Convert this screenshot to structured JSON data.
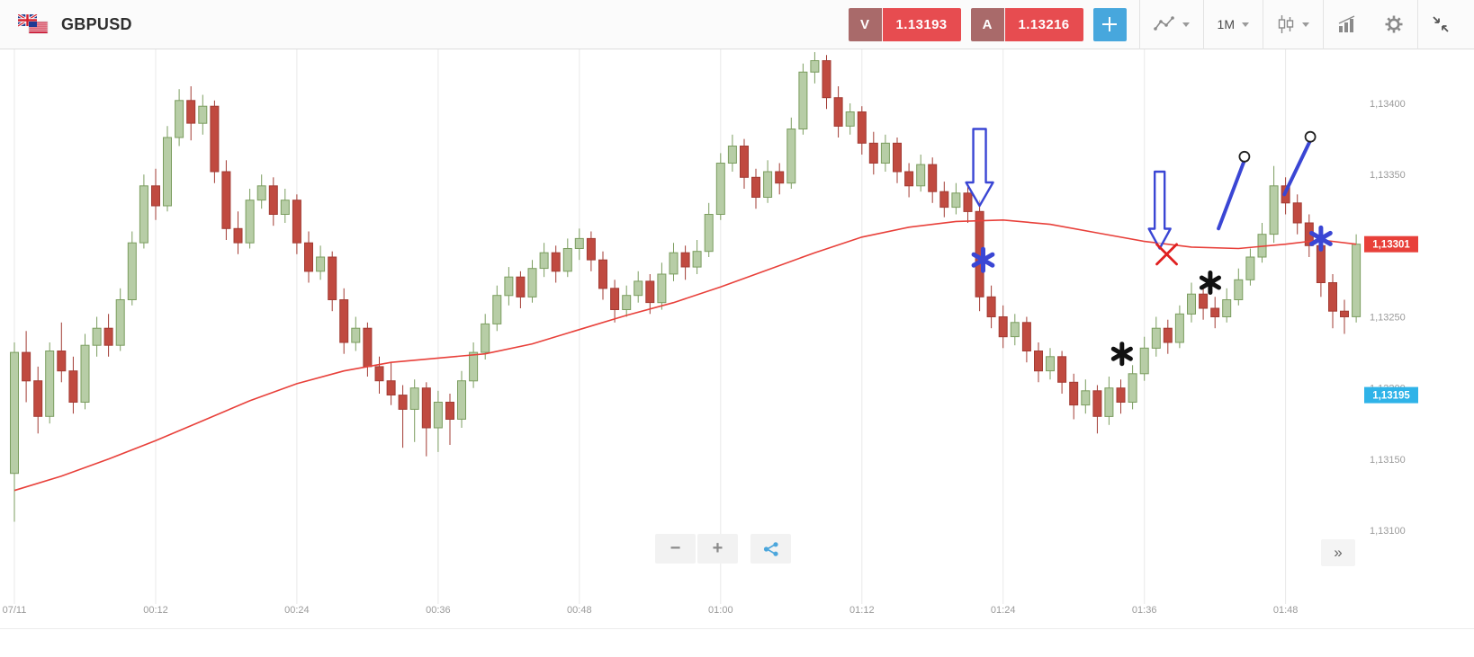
{
  "header": {
    "symbol": "GBPUSD",
    "sell": {
      "label": "V",
      "price": "1.13193"
    },
    "buy": {
      "label": "A",
      "price": "1.13216"
    },
    "timeframe": "1M",
    "colors": {
      "tag_bg": "#a96a6a",
      "price_bg": "#e74c50",
      "crosshair_bg": "#47a7dd"
    }
  },
  "bottom_controls": {
    "zoom_out_label": "−",
    "zoom_in_label": "+",
    "expand_label": "»"
  },
  "chart_data": {
    "type": "candlestick",
    "title": "GBPUSD 1-minute candlestick chart",
    "interval": "1M",
    "date": "07/11",
    "x_start_time": "00:00",
    "minutes_per_candle": 1,
    "grid": "vertical-only",
    "x_ticks": [
      {
        "minute": 0,
        "label": "07/11"
      },
      {
        "minute": 12,
        "label": "00:12"
      },
      {
        "minute": 24,
        "label": "00:24"
      },
      {
        "minute": 36,
        "label": "00:36"
      },
      {
        "minute": 48,
        "label": "00:48"
      },
      {
        "minute": 60,
        "label": "01:00"
      },
      {
        "minute": 72,
        "label": "01:12"
      },
      {
        "minute": 84,
        "label": "01:24"
      },
      {
        "minute": 96,
        "label": "01:36"
      },
      {
        "minute": 108,
        "label": "01:48"
      }
    ],
    "y_ticks": [
      {
        "price": 1.134,
        "label": "1,13400"
      },
      {
        "price": 1.1335,
        "label": "1,13350"
      },
      {
        "price": 1.133,
        "label": "1,13300"
      },
      {
        "price": 1.1325,
        "label": "1,13250"
      },
      {
        "price": 1.132,
        "label": "1,13200"
      },
      {
        "price": 1.1315,
        "label": "1,13150"
      },
      {
        "price": 1.131,
        "label": "1,13100"
      }
    ],
    "price_at_plot_top": 1.134379,
    "price_at_plot_bottom": 1.130482,
    "candles_ohlc": [
      [
        1.1314,
        1.13232,
        1.13106,
        1.13225
      ],
      [
        1.13225,
        1.1324,
        1.1319,
        1.13205
      ],
      [
        1.13205,
        1.13215,
        1.13168,
        1.1318
      ],
      [
        1.1318,
        1.13232,
        1.13175,
        1.13226
      ],
      [
        1.13226,
        1.13246,
        1.13204,
        1.13212
      ],
      [
        1.13212,
        1.13222,
        1.13182,
        1.1319
      ],
      [
        1.1319,
        1.13238,
        1.13185,
        1.1323
      ],
      [
        1.1323,
        1.1325,
        1.13222,
        1.13242
      ],
      [
        1.13242,
        1.13252,
        1.13222,
        1.1323
      ],
      [
        1.1323,
        1.1327,
        1.13226,
        1.13262
      ],
      [
        1.13262,
        1.1331,
        1.13258,
        1.13302
      ],
      [
        1.13302,
        1.1335,
        1.13298,
        1.13342
      ],
      [
        1.13342,
        1.13354,
        1.13318,
        1.13328
      ],
      [
        1.13328,
        1.13384,
        1.13324,
        1.13376
      ],
      [
        1.13376,
        1.1341,
        1.1337,
        1.13402
      ],
      [
        1.13402,
        1.13412,
        1.13374,
        1.13386
      ],
      [
        1.13386,
        1.13406,
        1.13378,
        1.13398
      ],
      [
        1.13398,
        1.13402,
        1.13344,
        1.13352
      ],
      [
        1.13352,
        1.1336,
        1.13304,
        1.13312
      ],
      [
        1.13312,
        1.13324,
        1.13294,
        1.13302
      ],
      [
        1.13302,
        1.1334,
        1.13298,
        1.13332
      ],
      [
        1.13332,
        1.1335,
        1.13326,
        1.13342
      ],
      [
        1.13342,
        1.13348,
        1.13314,
        1.13322
      ],
      [
        1.13322,
        1.1334,
        1.13316,
        1.13332
      ],
      [
        1.13332,
        1.13336,
        1.13294,
        1.13302
      ],
      [
        1.13302,
        1.1331,
        1.13274,
        1.13282
      ],
      [
        1.13282,
        1.133,
        1.13276,
        1.13292
      ],
      [
        1.13292,
        1.13296,
        1.13254,
        1.13262
      ],
      [
        1.13262,
        1.1327,
        1.13224,
        1.13232
      ],
      [
        1.13232,
        1.1325,
        1.13226,
        1.13242
      ],
      [
        1.13242,
        1.13246,
        1.13208,
        1.13215
      ],
      [
        1.13215,
        1.13222,
        1.13196,
        1.13205
      ],
      [
        1.13205,
        1.13218,
        1.13188,
        1.13195
      ],
      [
        1.13195,
        1.13202,
        1.13158,
        1.13185
      ],
      [
        1.13185,
        1.13206,
        1.13162,
        1.132
      ],
      [
        1.132,
        1.13204,
        1.13152,
        1.13172
      ],
      [
        1.13172,
        1.13198,
        1.13155,
        1.1319
      ],
      [
        1.1319,
        1.13196,
        1.1316,
        1.13178
      ],
      [
        1.13178,
        1.13212,
        1.13172,
        1.13205
      ],
      [
        1.13205,
        1.13232,
        1.132,
        1.13225
      ],
      [
        1.13225,
        1.13252,
        1.1322,
        1.13245
      ],
      [
        1.13245,
        1.13272,
        1.1324,
        1.13265
      ],
      [
        1.13265,
        1.13285,
        1.13258,
        1.13278
      ],
      [
        1.13278,
        1.13282,
        1.13256,
        1.13264
      ],
      [
        1.13264,
        1.1329,
        1.1326,
        1.13284
      ],
      [
        1.13284,
        1.13302,
        1.13278,
        1.13295
      ],
      [
        1.13295,
        1.133,
        1.13274,
        1.13282
      ],
      [
        1.13282,
        1.13305,
        1.13278,
        1.13298
      ],
      [
        1.13298,
        1.13312,
        1.1329,
        1.13305
      ],
      [
        1.13305,
        1.1331,
        1.13282,
        1.1329
      ],
      [
        1.1329,
        1.13296,
        1.13262,
        1.1327
      ],
      [
        1.1327,
        1.13276,
        1.13246,
        1.13255
      ],
      [
        1.13255,
        1.13272,
        1.1325,
        1.13265
      ],
      [
        1.13265,
        1.13282,
        1.1326,
        1.13275
      ],
      [
        1.13275,
        1.1328,
        1.13252,
        1.1326
      ],
      [
        1.1326,
        1.13288,
        1.13255,
        1.1328
      ],
      [
        1.1328,
        1.13302,
        1.13275,
        1.13295
      ],
      [
        1.13295,
        1.133,
        1.13276,
        1.13285
      ],
      [
        1.13285,
        1.13304,
        1.1328,
        1.13296
      ],
      [
        1.13296,
        1.1333,
        1.13292,
        1.13322
      ],
      [
        1.13322,
        1.13365,
        1.13318,
        1.13358
      ],
      [
        1.13358,
        1.13378,
        1.13352,
        1.1337
      ],
      [
        1.1337,
        1.13375,
        1.1334,
        1.13348
      ],
      [
        1.13348,
        1.13354,
        1.13326,
        1.13334
      ],
      [
        1.13334,
        1.1336,
        1.1333,
        1.13352
      ],
      [
        1.13352,
        1.13358,
        1.13336,
        1.13344
      ],
      [
        1.13344,
        1.1339,
        1.1334,
        1.13382
      ],
      [
        1.13382,
        1.13428,
        1.13378,
        1.13422
      ],
      [
        1.13422,
        1.13436,
        1.13414,
        1.1343
      ],
      [
        1.1343,
        1.13434,
        1.13396,
        1.13404
      ],
      [
        1.13404,
        1.13412,
        1.13376,
        1.13384
      ],
      [
        1.13384,
        1.134,
        1.13378,
        1.13394
      ],
      [
        1.13394,
        1.13398,
        1.13364,
        1.13372
      ],
      [
        1.13372,
        1.1338,
        1.1335,
        1.13358
      ],
      [
        1.13358,
        1.13378,
        1.13352,
        1.13372
      ],
      [
        1.13372,
        1.13376,
        1.13344,
        1.13352
      ],
      [
        1.13352,
        1.13358,
        1.13334,
        1.13342
      ],
      [
        1.13342,
        1.13364,
        1.13338,
        1.13357
      ],
      [
        1.13357,
        1.13362,
        1.1333,
        1.13338
      ],
      [
        1.13338,
        1.13345,
        1.1332,
        1.13327
      ],
      [
        1.13327,
        1.13344,
        1.13322,
        1.13337
      ],
      [
        1.13337,
        1.13342,
        1.13316,
        1.13324
      ],
      [
        1.13324,
        1.13332,
        1.13254,
        1.13264
      ],
      [
        1.13264,
        1.13272,
        1.13242,
        1.1325
      ],
      [
        1.1325,
        1.13258,
        1.13228,
        1.13236
      ],
      [
        1.13236,
        1.13252,
        1.1323,
        1.13246
      ],
      [
        1.13246,
        1.1325,
        1.13218,
        1.13226
      ],
      [
        1.13226,
        1.13232,
        1.13204,
        1.13212
      ],
      [
        1.13212,
        1.13228,
        1.13206,
        1.13222
      ],
      [
        1.13222,
        1.13226,
        1.13196,
        1.13204
      ],
      [
        1.13204,
        1.1321,
        1.13178,
        1.13188
      ],
      [
        1.13188,
        1.13206,
        1.13182,
        1.13198
      ],
      [
        1.13198,
        1.13202,
        1.13168,
        1.1318
      ],
      [
        1.1318,
        1.13208,
        1.13174,
        1.132
      ],
      [
        1.132,
        1.13206,
        1.13182,
        1.1319
      ],
      [
        1.1319,
        1.13216,
        1.13185,
        1.1321
      ],
      [
        1.1321,
        1.13236,
        1.13205,
        1.13228
      ],
      [
        1.13228,
        1.1325,
        1.13222,
        1.13242
      ],
      [
        1.13242,
        1.13248,
        1.13224,
        1.13232
      ],
      [
        1.13232,
        1.13258,
        1.13228,
        1.13252
      ],
      [
        1.13252,
        1.13274,
        1.13246,
        1.13266
      ],
      [
        1.13266,
        1.13272,
        1.13248,
        1.13256
      ],
      [
        1.13256,
        1.13264,
        1.13242,
        1.1325
      ],
      [
        1.1325,
        1.1327,
        1.13246,
        1.13262
      ],
      [
        1.13262,
        1.13284,
        1.13258,
        1.13276
      ],
      [
        1.13276,
        1.13298,
        1.13272,
        1.13292
      ],
      [
        1.13292,
        1.13316,
        1.13288,
        1.13308
      ],
      [
        1.13308,
        1.13356,
        1.13302,
        1.13342
      ],
      [
        1.13342,
        1.13348,
        1.13322,
        1.1333
      ],
      [
        1.1333,
        1.13336,
        1.13308,
        1.13316
      ],
      [
        1.13316,
        1.13322,
        1.13292,
        1.133
      ],
      [
        1.133,
        1.13306,
        1.13264,
        1.13274
      ],
      [
        1.13274,
        1.1328,
        1.13242,
        1.13254
      ],
      [
        1.13254,
        1.13262,
        1.13238,
        1.1325
      ],
      [
        1.1325,
        1.13308,
        1.13246,
        1.13301
      ]
    ],
    "ma_line": {
      "name": "moving-average",
      "color": "#e8403a",
      "points": [
        [
          0,
          1.13128
        ],
        [
          4,
          1.13138
        ],
        [
          8,
          1.1315
        ],
        [
          12,
          1.13163
        ],
        [
          16,
          1.13177
        ],
        [
          20,
          1.13191
        ],
        [
          24,
          1.13203
        ],
        [
          28,
          1.13212
        ],
        [
          32,
          1.13218
        ],
        [
          36,
          1.13221
        ],
        [
          40,
          1.13224
        ],
        [
          44,
          1.13231
        ],
        [
          48,
          1.13241
        ],
        [
          52,
          1.13251
        ],
        [
          56,
          1.1326
        ],
        [
          60,
          1.13271
        ],
        [
          64,
          1.13283
        ],
        [
          68,
          1.13295
        ],
        [
          72,
          1.13306
        ],
        [
          76,
          1.13313
        ],
        [
          80,
          1.13317
        ],
        [
          84,
          1.13318
        ],
        [
          88,
          1.13315
        ],
        [
          92,
          1.13309
        ],
        [
          96,
          1.13303
        ],
        [
          100,
          1.13299
        ],
        [
          104,
          1.13298
        ],
        [
          108,
          1.13301
        ],
        [
          111,
          1.13304
        ],
        [
          114,
          1.13301
        ]
      ]
    },
    "price_labels": [
      {
        "text": "1,13301",
        "price": 1.13301,
        "bg": "#e8403a"
      },
      {
        "text": "1,13195",
        "price": 1.13195,
        "bg": "#2fb3e8"
      }
    ],
    "annotations": {
      "line_color": "#3a46d4",
      "arrows_down": [
        {
          "x_min": 82.0,
          "tail_price": 1.13382,
          "tip_price": 1.13328,
          "shaft_w": 7,
          "head_w": 15,
          "head_len": 26
        },
        {
          "x_min": 97.3,
          "tail_price": 1.13352,
          "tip_price": 1.13298,
          "shaft_w": 5.5,
          "head_w": 12,
          "head_len": 22
        }
      ],
      "asterisks": [
        {
          "x_min": 82.3,
          "price": 1.1329,
          "r": 12,
          "color": "#3a46d4"
        },
        {
          "x_min": 94.1,
          "price": 1.13224,
          "r": 11,
          "color": "#111111"
        },
        {
          "x_min": 101.6,
          "price": 1.13274,
          "r": 11,
          "color": "#111111"
        },
        {
          "x_min": 111.0,
          "price": 1.13305,
          "r": 12,
          "color": "#3a46d4"
        }
      ],
      "cross_marks": [
        {
          "x_min": 97.9,
          "price": 1.13294,
          "size": 11,
          "color": "#e02020"
        }
      ],
      "trend_lines": [
        {
          "from": [
            102.3,
            1.13312
          ],
          "to": [
            104.5,
            1.1336
          ]
        },
        {
          "from": [
            107.9,
            1.13336
          ],
          "to": [
            110.1,
            1.13374
          ]
        }
      ]
    },
    "colors": {
      "up_fill": "#b7cda6",
      "up_border": "#7b9d5f",
      "down_fill": "#c04a40",
      "down_border": "#a23b33",
      "grid": "#e9e9e9",
      "axis_text": "#9b9b9b"
    }
  }
}
